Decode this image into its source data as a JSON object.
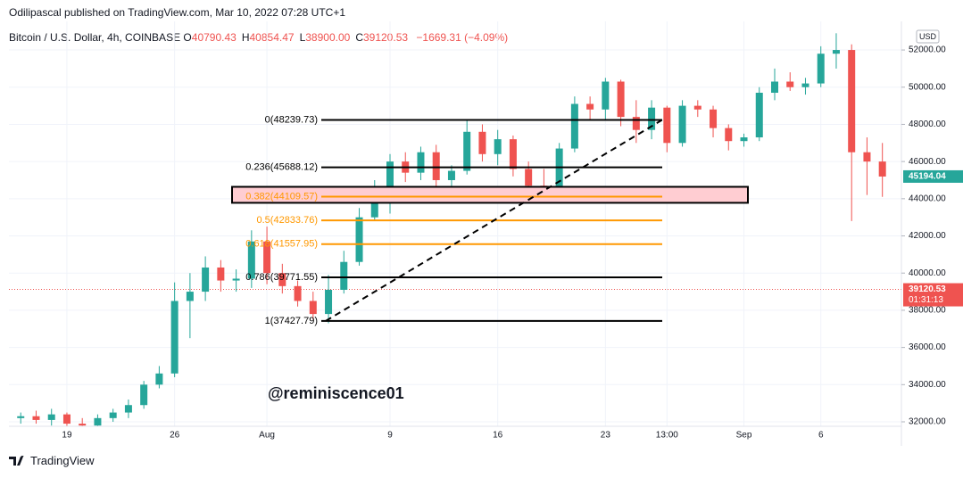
{
  "header": {
    "publisher": "Odilipascal published on TradingView.com, Mar 10, 2022 07:28 UTC+1",
    "symbol": "Bitcoin / U.S. Dollar, 4h, COINBASE",
    "ohlc": [
      {
        "label": "O",
        "value": "40790.43"
      },
      {
        "label": "H",
        "value": "40854.47"
      },
      {
        "label": "L",
        "value": "38900.00"
      },
      {
        "label": "C",
        "value": "39120.53"
      }
    ],
    "change": "−1669.31 (−4.09%)"
  },
  "footer": {
    "brand": "TradingView"
  },
  "chart_data": {
    "type": "candlestick",
    "currency": "USD",
    "watermark": "@reminiscence01",
    "up_color": "#26a69a",
    "down_color": "#ef5350",
    "categories": [
      null,
      null,
      null,
      null,
      "19",
      null,
      null,
      null,
      null,
      null,
      null,
      "26",
      null,
      null,
      null,
      null,
      null,
      "Aug",
      null,
      null,
      null,
      null,
      null,
      null,
      null,
      "9",
      null,
      null,
      null,
      null,
      null,
      null,
      "16",
      null,
      null,
      null,
      null,
      null,
      null,
      "23",
      null,
      null,
      null,
      "13:00",
      null,
      null,
      null,
      null,
      "Sep",
      null,
      null,
      null,
      null,
      "6",
      null,
      null,
      null,
      null
    ],
    "open": [
      32600,
      32200,
      32300,
      32100,
      32400,
      31900,
      31800,
      32200,
      32500,
      32900,
      34000,
      34600,
      38500,
      39000,
      40300,
      39600,
      39700,
      41700,
      40000,
      39300,
      38500,
      37800,
      39100,
      40600,
      43000,
      44200,
      46000,
      45400,
      46500,
      45000,
      45500,
      47600,
      46400,
      47200,
      45600,
      44700,
      44300,
      46700,
      49100,
      48800,
      50300,
      48400,
      47700,
      48900,
      47000,
      49000,
      48800,
      47800,
      47100,
      47300,
      49700,
      50300,
      50000,
      50200,
      51800,
      52000,
      46500,
      46000
    ],
    "high": [
      32700,
      32500,
      32600,
      32700,
      32500,
      32200,
      32400,
      32700,
      33200,
      34200,
      35000,
      39500,
      40000,
      40900,
      40700,
      40200,
      42300,
      42500,
      40500,
      39600,
      39000,
      39900,
      41200,
      43500,
      45000,
      46400,
      46500,
      46800,
      46900,
      45800,
      48200,
      48000,
      47700,
      47400,
      46000,
      45600,
      47000,
      49500,
      49500,
      50500,
      50400,
      49300,
      49300,
      49000,
      49300,
      49300,
      49000,
      48000,
      47500,
      50000,
      51000,
      50800,
      50500,
      52200,
      52900,
      52300,
      47300,
      47000
    ],
    "low": [
      32000,
      31900,
      31900,
      31800,
      31700,
      31500,
      31600,
      32000,
      32200,
      32700,
      33800,
      34400,
      36500,
      38500,
      39000,
      39000,
      39200,
      39400,
      38900,
      38200,
      37500,
      37300,
      38900,
      40400,
      42800,
      43200,
      44900,
      45000,
      44500,
      43800,
      45300,
      46000,
      45800,
      45200,
      44200,
      44000,
      43900,
      46500,
      48200,
      48200,
      47900,
      47000,
      47200,
      46500,
      46800,
      48400,
      47300,
      46600,
      46800,
      47100,
      49300,
      49800,
      49600,
      50000,
      51000,
      42800,
      44200,
      44100
    ],
    "close": [
      32200,
      32300,
      32100,
      32400,
      31900,
      31800,
      32200,
      32500,
      32900,
      34000,
      34600,
      38500,
      39000,
      40300,
      39600,
      39700,
      41700,
      40000,
      39300,
      38500,
      37800,
      39100,
      40600,
      43000,
      44200,
      46000,
      45400,
      46500,
      45000,
      45500,
      47600,
      46400,
      47200,
      45600,
      44700,
      44300,
      46700,
      49100,
      48800,
      50300,
      48400,
      47700,
      48900,
      47000,
      49000,
      48800,
      47800,
      47100,
      47300,
      49700,
      50300,
      50000,
      50200,
      51800,
      52000,
      46500,
      46000,
      45194.04
    ],
    "ylim": [
      31760,
      53250
    ],
    "yticks": [
      {
        "value": 32000,
        "label": "32000.00"
      },
      {
        "value": 34000,
        "label": "34000.00"
      },
      {
        "value": 36000,
        "label": "36000.00"
      },
      {
        "value": 38000,
        "label": "38000.00"
      },
      {
        "value": 40000,
        "label": "40000.00"
      },
      {
        "value": 42000,
        "label": "42000.00"
      },
      {
        "value": 44000,
        "label": "44000.00"
      },
      {
        "value": 46000,
        "label": "46000.00"
      },
      {
        "value": 48000,
        "label": "48000.00"
      },
      {
        "value": 50000,
        "label": "50000.00"
      },
      {
        "value": 52000,
        "label": "52000.00"
      }
    ],
    "grid": true,
    "fib_levels": [
      {
        "label": "0(48239.73)",
        "value": 48239.73,
        "color": "#000000"
      },
      {
        "label": "0.236(45688.12)",
        "value": 45688.12,
        "color": "#000000"
      },
      {
        "label": "0.382(44109.57)",
        "value": 44109.57,
        "color": "#ff9800"
      },
      {
        "label": "0.5(42833.76)",
        "value": 42833.76,
        "color": "#ff9800"
      },
      {
        "label": "0.618(41557.95)",
        "value": 41557.95,
        "color": "#ff9800"
      },
      {
        "label": "0.786(39771.55)",
        "value": 39771.55,
        "color": "#000000"
      },
      {
        "label": "1(37427.79)",
        "value": 37427.79,
        "color": "#000000"
      }
    ],
    "highlight_box": {
      "ylim": [
        43780,
        44640
      ],
      "color": "#ffcdd2"
    },
    "last_price": {
      "value": 45194.04,
      "color": "#26a69a"
    },
    "current_price": {
      "value": 39120.53,
      "countdown": "01:31:13",
      "color": "#ef5350"
    }
  }
}
